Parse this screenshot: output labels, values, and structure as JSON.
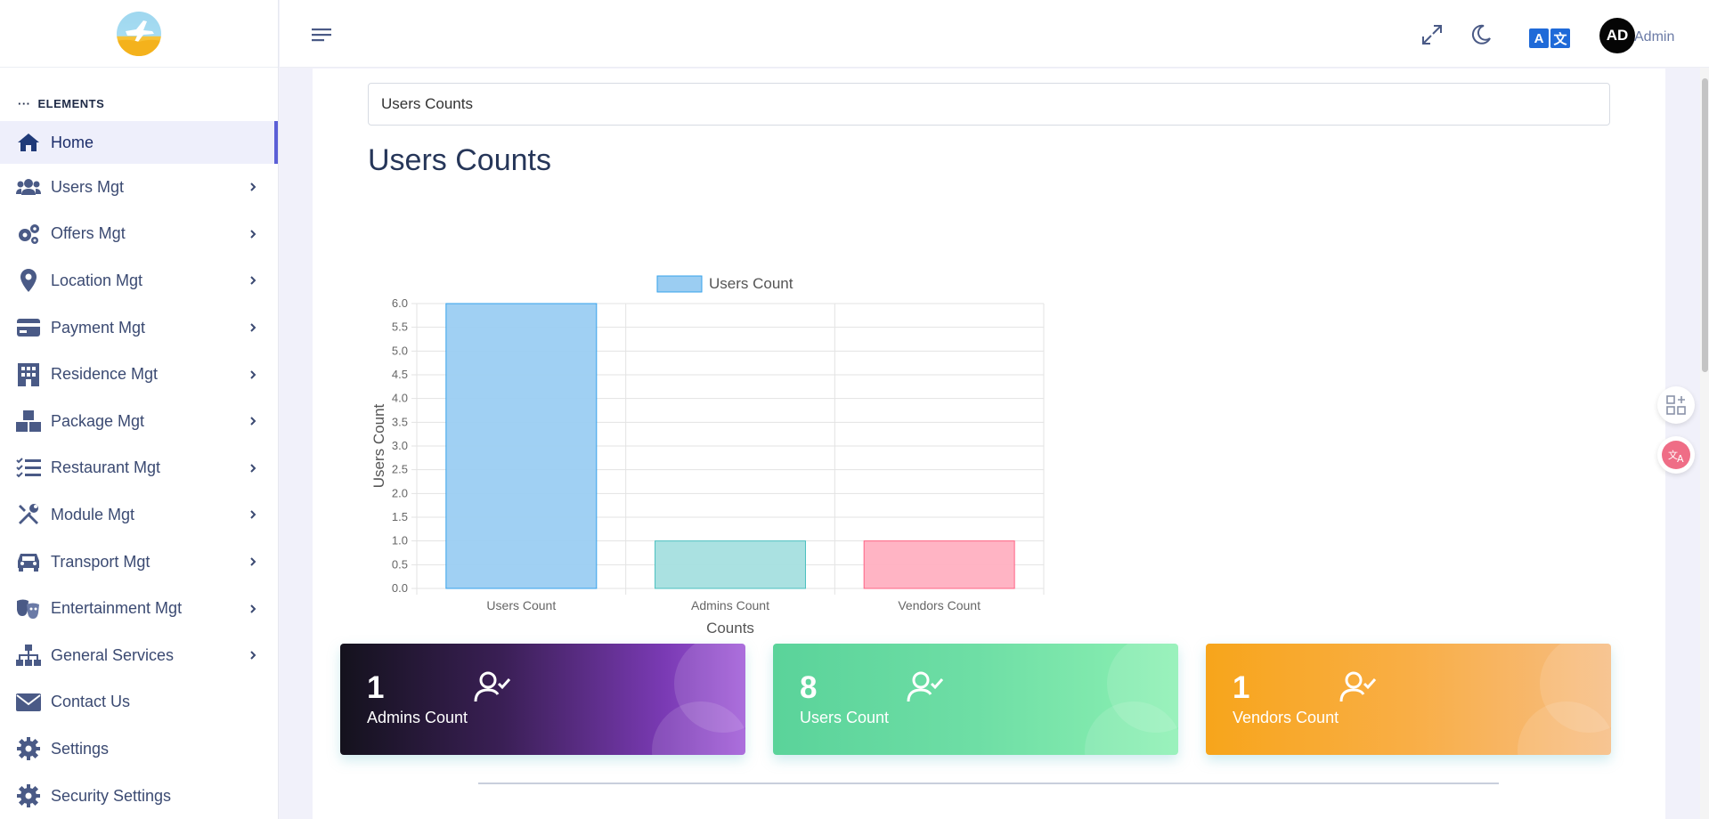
{
  "sidebar": {
    "section_label": "ELEMENTS",
    "items": [
      {
        "label": "Home",
        "icon": "home-icon",
        "active": true
      },
      {
        "label": "Users Mgt",
        "icon": "users-icon"
      },
      {
        "label": "Offers Mgt",
        "icon": "cogs-icon"
      },
      {
        "label": "Location Mgt",
        "icon": "map-pin-icon"
      },
      {
        "label": "Payment Mgt",
        "icon": "credit-card-icon"
      },
      {
        "label": "Residence Mgt",
        "icon": "building-icon"
      },
      {
        "label": "Package Mgt",
        "icon": "boxes-icon"
      },
      {
        "label": "Restaurant Mgt",
        "icon": "tasks-icon"
      },
      {
        "label": "Module Mgt",
        "icon": "tools-icon"
      },
      {
        "label": "Transport Mgt",
        "icon": "car-icon"
      },
      {
        "label": "Entertainment Mgt",
        "icon": "masks-icon"
      },
      {
        "label": "General Services",
        "icon": "sitemap-icon"
      },
      {
        "label": "Contact Us",
        "icon": "envelope-icon"
      },
      {
        "label": "Settings",
        "icon": "gear-icon"
      },
      {
        "label": "Security Settings",
        "icon": "gear-icon"
      }
    ]
  },
  "topbar": {
    "lang_left": "A",
    "lang_right": "文",
    "avatar_initials": "AD",
    "user_name": "Admin"
  },
  "main": {
    "select_value": "Users Counts",
    "title": "Users Counts"
  },
  "chart_data": {
    "type": "bar",
    "categories": [
      "Users Count",
      "Admins Count",
      "Vendors Count"
    ],
    "series": [
      {
        "name": "Users Count",
        "values": [
          6,
          1,
          1
        ]
      }
    ],
    "colors": [
      "#9bcdf2",
      "#a5dfdf",
      "#ffb0c1"
    ],
    "border_colors": [
      "#36a2eb",
      "#4bc0c0",
      "#ff6384"
    ],
    "xlabel": "Counts",
    "ylabel": "Users Count",
    "ylim": [
      0,
      6
    ],
    "yticks": [
      "0.0",
      "0.5",
      "1.0",
      "1.5",
      "2.0",
      "2.5",
      "3.0",
      "3.5",
      "4.0",
      "4.5",
      "5.0",
      "5.5",
      "6.0"
    ],
    "legend": "top-center",
    "grid": true
  },
  "cards": [
    {
      "value": "1",
      "label": "Admins Count"
    },
    {
      "value": "8",
      "label": "Users Count"
    },
    {
      "value": "1",
      "label": "Vendors Count"
    }
  ],
  "colors": {
    "accent": "#5b5fd6",
    "sidebar_text": "#3b4a72",
    "lang_blue": "#1f6ad8"
  }
}
